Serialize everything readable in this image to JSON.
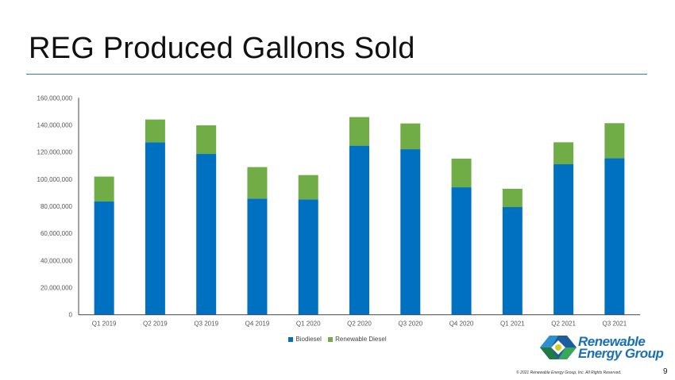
{
  "title": "REG Produced Gallons Sold",
  "footer": {
    "logo_text_line1": "Renewable",
    "logo_text_line2": "Energy Group",
    "copyright": "© 2021 Renewable Energy Group, Inc. All Rights Reserved.",
    "page_number": "9"
  },
  "chart_data": {
    "type": "bar",
    "stacked": true,
    "categories": [
      "Q1 2019",
      "Q2 2019",
      "Q3 2019",
      "Q4 2019",
      "Q1 2020",
      "Q2 2020",
      "Q3 2020",
      "Q4 2020",
      "Q1 2021",
      "Q2 2021",
      "Q3 2021"
    ],
    "series": [
      {
        "name": "Biodiesel",
        "color": "#0070c0",
        "values": [
          83500000,
          127200000,
          118600000,
          85700000,
          85100000,
          124700000,
          122100000,
          94000000,
          79400000,
          111000000,
          115500000
        ]
      },
      {
        "name": "Renewable Diesel",
        "color": "#70ad47",
        "values": [
          18400000,
          16800000,
          21100000,
          23200000,
          17900000,
          21100000,
          19000000,
          21100000,
          13500000,
          16200000,
          25800000
        ]
      }
    ],
    "ylim": [
      0,
      160000000
    ],
    "yticks": [
      "0",
      "20,000,000",
      "40,000,000",
      "60,000,000",
      "80,000,000",
      "100,000,000",
      "120,000,000",
      "140,000,000",
      "160,000,000"
    ],
    "grid": false,
    "legend": "bottom"
  }
}
